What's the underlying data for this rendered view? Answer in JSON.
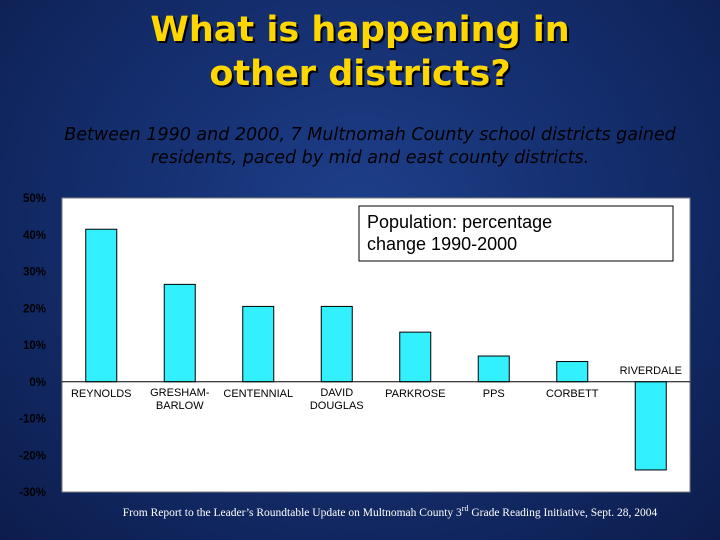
{
  "slide": {
    "title_line1": "What is happening in",
    "title_line2": "other districts?",
    "subtitle_line1": "Between 1990 and 2000, 7 Multnomah County school districts gained",
    "subtitle_line2": "residents, paced by mid and east county districts.",
    "footer_pre": "From Report to the Leader’s Roundtable Update on Multnomah County 3",
    "footer_sup": "rd",
    "footer_post": " Grade Reading Initiative, Sept. 28, 2004"
  },
  "chart_data": {
    "type": "bar",
    "title": "Population: percentage change 1990-2000",
    "title_lines": [
      "Population: percentage",
      "change 1990-2000"
    ],
    "legend_position": "top-right",
    "categories": [
      "REYNOLDS",
      "GRESHAM-BARLOW",
      "CENTENNIAL",
      "DAVID DOUGLAS",
      "PARKROSE",
      "PPS",
      "CORBETT",
      "RIVERDALE"
    ],
    "category_lines": [
      [
        "REYNOLDS"
      ],
      [
        "GRESHAM-",
        "BARLOW"
      ],
      [
        "CENTENNIAL"
      ],
      [
        "DAVID",
        "DOUGLAS"
      ],
      [
        "PARKROSE"
      ],
      [
        "PPS"
      ],
      [
        "CORBETT"
      ],
      [
        "RIVERDALE"
      ]
    ],
    "values": [
      41.5,
      26.5,
      20.5,
      20.5,
      13.5,
      7.0,
      5.5,
      -24.0
    ],
    "ylim": [
      -30,
      50
    ],
    "yticks": [
      50,
      40,
      30,
      20,
      10,
      0,
      -10,
      -20,
      -30
    ],
    "ytick_labels": [
      "50%",
      "40%",
      "30%",
      "20%",
      "10%",
      "0%",
      "-10%",
      "-20%",
      "-30%"
    ],
    "grid": false,
    "colors": {
      "bar": "#33f0ff",
      "bar_stroke": "#000000",
      "plot_bg": "#ffffff",
      "frame": "#7d7d7d"
    }
  }
}
